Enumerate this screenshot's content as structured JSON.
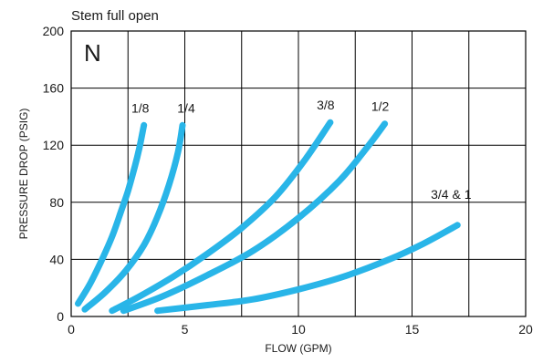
{
  "chart_data": {
    "type": "line",
    "subtitle": "Stem full open",
    "panel_label": "N",
    "xlabel": "FLOW (GPM)",
    "ylabel": "PRESSURE DROP (PSIG)",
    "xlim": [
      0,
      20
    ],
    "ylim": [
      0,
      200
    ],
    "x_ticks": [
      0,
      5,
      10,
      15,
      20
    ],
    "y_ticks": [
      0,
      40,
      80,
      120,
      160,
      200
    ],
    "grid": true,
    "series_color": "#29b5e8",
    "series": [
      {
        "name": "1/8",
        "x": [
          0.3,
          0.8,
          1.3,
          1.8,
          2.2,
          2.5,
          2.8,
          3.0,
          3.2
        ],
        "y": [
          9,
          22,
          38,
          56,
          74,
          88,
          105,
          118,
          134
        ]
      },
      {
        "name": "1/4",
        "x": [
          0.6,
          1.5,
          2.4,
          3.2,
          3.8,
          4.3,
          4.7,
          4.9
        ],
        "y": [
          5,
          17,
          32,
          50,
          70,
          92,
          115,
          134
        ]
      },
      {
        "name": "3/8",
        "x": [
          1.8,
          3.0,
          4.5,
          6.0,
          7.5,
          9.0,
          10.3,
          11.4
        ],
        "y": [
          4,
          14,
          28,
          44,
          62,
          84,
          110,
          136
        ]
      },
      {
        "name": "1/2",
        "x": [
          2.3,
          4.0,
          6.0,
          8.0,
          10.0,
          11.8,
          13.0,
          13.8
        ],
        "y": [
          4,
          14,
          29,
          46,
          69,
          95,
          118,
          135
        ]
      },
      {
        "name": "3/4 & 1",
        "x": [
          3.8,
          6.0,
          8.0,
          10.0,
          12.0,
          14.0,
          15.5,
          17.0
        ],
        "y": [
          4,
          8,
          12,
          19,
          28,
          40,
          51,
          64
        ]
      }
    ]
  }
}
